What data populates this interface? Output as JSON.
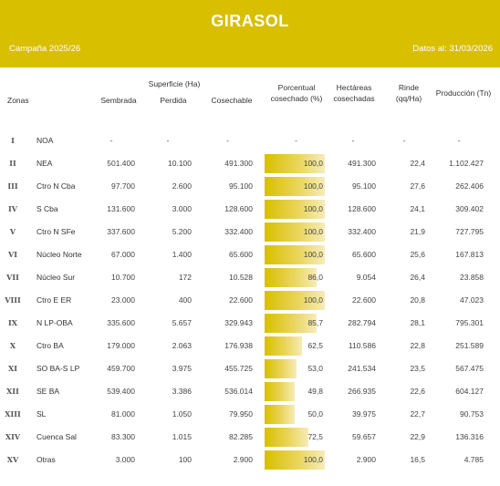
{
  "header": {
    "title": "GIRASOL",
    "campaign": "Campaña 2025/26",
    "date": "Datos al: 31/03/2026",
    "bg_color": "#d8bf00"
  },
  "columns": {
    "zonas": "Zonas",
    "superficie": "Superficie (Ha)",
    "sembrada": "Sembrada",
    "perdida": "Perdida",
    "cosechable": "Cosechable",
    "porcentual_1": "Porcentual",
    "porcentual_2": "cosechado (%)",
    "hectareas_1": "Hectáreas",
    "hectareas_2": "cosechadas",
    "rinde_1": "Rinde",
    "rinde_2": "(qq/Ha)",
    "produccion": "Producción (Tn)"
  },
  "rows": [
    {
      "roman": "I",
      "zona": "NOA",
      "sembrada": "-",
      "perdida": "-",
      "cosechable": "-",
      "pct": "-",
      "pct_value": 0,
      "hectareas": "-",
      "rinde": "-",
      "produccion": "-"
    },
    {
      "roman": "II",
      "zona": "NEA",
      "sembrada": "501.400",
      "perdida": "10.100",
      "cosechable": "491.300",
      "pct": "100,0",
      "pct_value": 100,
      "hectareas": "491.300",
      "rinde": "22,4",
      "produccion": "1.102.427"
    },
    {
      "roman": "III",
      "zona": "Ctro N Cba",
      "sembrada": "97.700",
      "perdida": "2.600",
      "cosechable": "95.100",
      "pct": "100,0",
      "pct_value": 100,
      "hectareas": "95.100",
      "rinde": "27,6",
      "produccion": "262.406"
    },
    {
      "roman": "IV",
      "zona": "S Cba",
      "sembrada": "131.600",
      "perdida": "3.000",
      "cosechable": "128.600",
      "pct": "100,0",
      "pct_value": 100,
      "hectareas": "128.600",
      "rinde": "24,1",
      "produccion": "309.402"
    },
    {
      "roman": "V",
      "zona": "Ctro N SFe",
      "sembrada": "337.600",
      "perdida": "5.200",
      "cosechable": "332.400",
      "pct": "100,0",
      "pct_value": 100,
      "hectareas": "332.400",
      "rinde": "21,9",
      "produccion": "727.795"
    },
    {
      "roman": "VI",
      "zona": "Núcleo Norte",
      "sembrada": "67.000",
      "perdida": "1.400",
      "cosechable": "65.600",
      "pct": "100,0",
      "pct_value": 100,
      "hectareas": "65.600",
      "rinde": "25,6",
      "produccion": "167.813"
    },
    {
      "roman": "VII",
      "zona": "Núcleo Sur",
      "sembrada": "10.700",
      "perdida": "172",
      "cosechable": "10.528",
      "pct": "86,0",
      "pct_value": 86,
      "hectareas": "9.054",
      "rinde": "26,4",
      "produccion": "23.858"
    },
    {
      "roman": "VIII",
      "zona": "Ctro E ER",
      "sembrada": "23.000",
      "perdida": "400",
      "cosechable": "22.600",
      "pct": "100,0",
      "pct_value": 100,
      "hectareas": "22.600",
      "rinde": "20,8",
      "produccion": "47.023"
    },
    {
      "roman": "IX",
      "zona": "N LP-OBA",
      "sembrada": "335.600",
      "perdida": "5.657",
      "cosechable": "329.943",
      "pct": "85,7",
      "pct_value": 85.7,
      "hectareas": "282.794",
      "rinde": "28,1",
      "produccion": "795.301"
    },
    {
      "roman": "X",
      "zona": "Ctro BA",
      "sembrada": "179.000",
      "perdida": "2.063",
      "cosechable": "176.938",
      "pct": "62,5",
      "pct_value": 62.5,
      "hectareas": "110.586",
      "rinde": "22,8",
      "produccion": "251.589"
    },
    {
      "roman": "XI",
      "zona": "SO BA-S LP",
      "sembrada": "459.700",
      "perdida": "3.975",
      "cosechable": "455.725",
      "pct": "53,0",
      "pct_value": 53,
      "hectareas": "241.534",
      "rinde": "23,5",
      "produccion": "567.475"
    },
    {
      "roman": "XII",
      "zona": "SE BA",
      "sembrada": "539.400",
      "perdida": "3.386",
      "cosechable": "536.014",
      "pct": "49,8",
      "pct_value": 49.8,
      "hectareas": "266.935",
      "rinde": "22,6",
      "produccion": "604.127"
    },
    {
      "roman": "XIII",
      "zona": "SL",
      "sembrada": "81.000",
      "perdida": "1.050",
      "cosechable": "79.950",
      "pct": "50,0",
      "pct_value": 50,
      "hectareas": "39.975",
      "rinde": "22,7",
      "produccion": "90.753"
    },
    {
      "roman": "XIV",
      "zona": "Cuenca Sal",
      "sembrada": "83.300",
      "perdida": "1.015",
      "cosechable": "82.285",
      "pct": "72,5",
      "pct_value": 72.5,
      "hectareas": "59.657",
      "rinde": "22,9",
      "produccion": "136.316"
    },
    {
      "roman": "XV",
      "zona": "Otras",
      "sembrada": "3.000",
      "perdida": "100",
      "cosechable": "2.900",
      "pct": "100,0",
      "pct_value": 100,
      "hectareas": "2.900",
      "rinde": "16,5",
      "produccion": "4.785"
    }
  ]
}
